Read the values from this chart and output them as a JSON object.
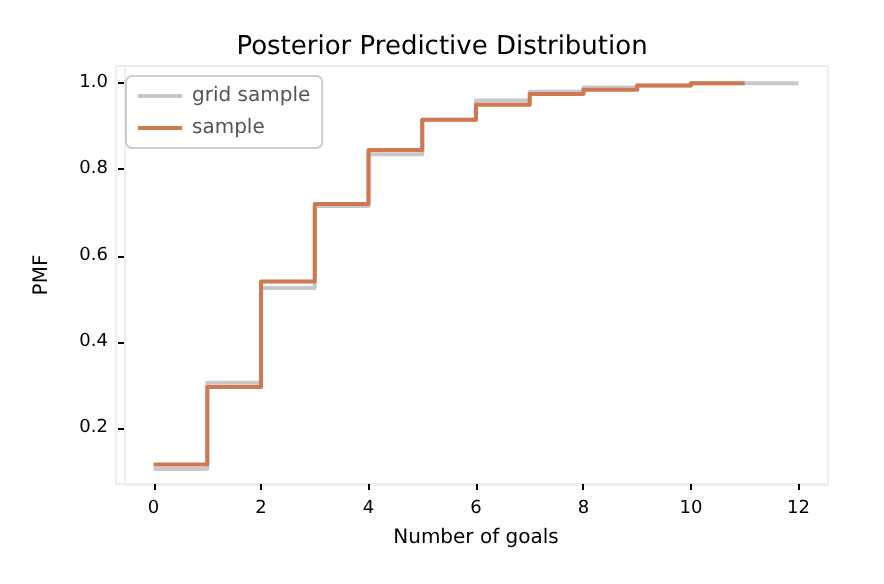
{
  "chart_data": {
    "type": "step",
    "title": "Posterior Predictive Distribution",
    "xlabel": "Number of goals",
    "ylabel": "PMF",
    "series": [
      {
        "name": "grid sample",
        "color": "#c8c8c8",
        "x": [
          0,
          1,
          2,
          3,
          4,
          5,
          6,
          7,
          8,
          9,
          10,
          11,
          12
        ],
        "values": [
          0.105,
          0.305,
          0.525,
          0.715,
          0.835,
          0.915,
          0.96,
          0.98,
          0.99,
          0.995,
          1.0,
          1.0,
          1.0
        ]
      },
      {
        "name": "sample",
        "color": "#d07850",
        "x": [
          0,
          1,
          2,
          3,
          4,
          5,
          6,
          7,
          8,
          9,
          10,
          11
        ],
        "values": [
          0.115,
          0.295,
          0.54,
          0.72,
          0.845,
          0.915,
          0.95,
          0.975,
          0.985,
          0.995,
          1.0,
          1.0
        ]
      }
    ],
    "xlim": [
      -0.55,
      12.55
    ],
    "xticks": [
      0,
      2,
      4,
      6,
      8,
      10,
      12
    ],
    "ylim": [
      0.07,
      1.04
    ],
    "yticks": [
      {
        "value": 0.2,
        "label": "0.2"
      },
      {
        "value": 0.4,
        "label": "0.4"
      },
      {
        "value": 0.6,
        "label": "0.6"
      },
      {
        "value": 0.8,
        "label": "0.8"
      },
      {
        "value": 1.0,
        "label": "1.0"
      }
    ],
    "grid": false,
    "legend": "top left",
    "marker": "none",
    "line_style": "solid"
  }
}
